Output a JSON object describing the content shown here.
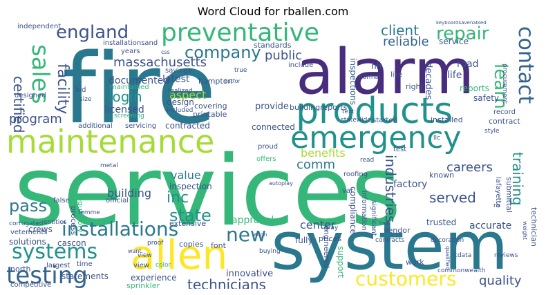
{
  "title": "Word Cloud for rballen.com",
  "words": [
    "services",
    "fire",
    "alarm",
    "system",
    "products",
    "maintenance",
    "emergency",
    "preventative",
    "allen",
    "systems",
    "installations",
    "testing",
    "customers",
    "technicians",
    "sales",
    "contact",
    "england",
    "company",
    "repair",
    "client",
    "massachusetts",
    "public",
    "reliable",
    "login",
    "certified",
    "facility",
    "program",
    "learn",
    "new",
    "state",
    "inc",
    "pass",
    "comm",
    "value",
    "building",
    "served",
    "careers",
    "training",
    "industries",
    "benefits",
    "center",
    "quality",
    "accurate",
    "approval",
    "factory",
    "compliance",
    "documented",
    "licensed",
    "latest",
    "aspect",
    "hampton",
    "design",
    "covering",
    "printable",
    "provide",
    "contracted",
    "connected",
    "reports",
    "safety",
    "life",
    "decades",
    "road",
    "right",
    "inspection",
    "inspections",
    "extensive",
    "process",
    "regulatory",
    "solutions",
    "cascon",
    "crews",
    "north",
    "competitive",
    "statements",
    "experience",
    "sprinkler",
    "innovative",
    "engineered",
    "support",
    "work",
    "trusted",
    "technician",
    "submittal",
    "lafayette",
    "fully",
    "copies",
    "font",
    "view",
    "largest",
    "time",
    "buildingreports",
    "record",
    "installed",
    "contract",
    "started",
    "known",
    "vendor",
    "prices",
    "significant",
    "information",
    "standards",
    "service",
    "like",
    "include",
    "nh",
    "maintained",
    "savings",
    "realized",
    "included",
    "designed",
    "additional",
    "servicing",
    "screening",
    "independent",
    "installationsand",
    "years",
    "bid",
    "size",
    "entities",
    "corrugated",
    "metal",
    "femme",
    "official",
    "false",
    "proof",
    "offers",
    "test",
    "read",
    "roofing",
    "var",
    "gray",
    "cdata",
    "reviews",
    "commonwealth",
    "buying",
    "contracts",
    "statewide",
    "text",
    "decoration",
    "proud",
    "procurement",
    "style",
    "true",
    "css",
    "keyboardsavenabled",
    "autoplay",
    "align",
    "rb",
    "weight",
    "normal",
    "listfor",
    "llc",
    "qualified",
    "loop",
    "vetements",
    "view",
    "color",
    "want"
  ],
  "colors": {
    "yellow": "#fde725",
    "lime": "#a5db36",
    "green": "#5ec962",
    "teal_green": "#35b779",
    "sea": "#22a884",
    "teal": "#21918c",
    "blue_teal": "#2a788e",
    "steel": "#33638d",
    "indigo": "#3b528b",
    "purple": "#443983",
    "deep": "#472d7b",
    "dark": "#440154"
  }
}
